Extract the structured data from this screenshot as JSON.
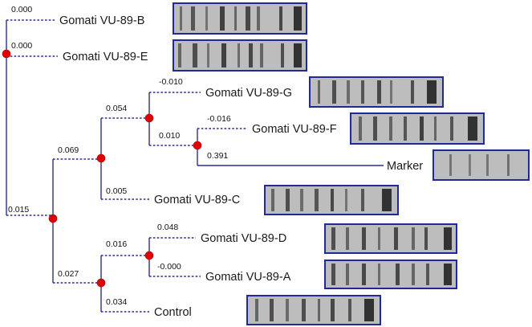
{
  "tree": {
    "taxa": [
      {
        "key": "b",
        "label": "Gomati VU-89-B",
        "branch_length": "0.000"
      },
      {
        "key": "e",
        "label": "Gomati VU-89-E",
        "branch_length": "0.000"
      },
      {
        "key": "g",
        "label": "Gomati VU-89-G",
        "branch_length": "-0.010"
      },
      {
        "key": "f",
        "label": "Gomati VU-89-F",
        "branch_length": "-0.016"
      },
      {
        "key": "marker",
        "label": "Marker",
        "branch_length": "0.391"
      },
      {
        "key": "c",
        "label": "Gomati VU-89-C",
        "branch_length": "0.005"
      },
      {
        "key": "d",
        "label": "Gomati VU-89-D",
        "branch_length": "0.048"
      },
      {
        "key": "a",
        "label": "Gomati VU-89-A",
        "branch_length": "-0.000"
      },
      {
        "key": "control",
        "label": "Control",
        "branch_length": "0.034"
      }
    ],
    "internal_branch_lengths": {
      "gf_clade": "0.054",
      "fm_clade": "0.010",
      "gfmc_clade": "0.069",
      "lower_group": "0.015",
      "dac_clade": "0.027",
      "da_clade": "0.016"
    },
    "node_color": "#e00000",
    "line_color": "#2b2f8f",
    "gel_frame_color": "#1f2a9a"
  }
}
